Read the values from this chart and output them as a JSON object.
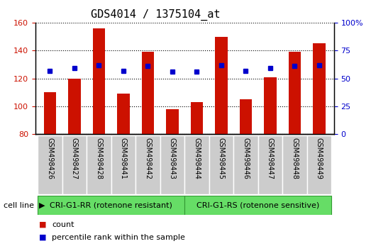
{
  "title": "GDS4014 / 1375104_at",
  "categories": [
    "GSM498426",
    "GSM498427",
    "GSM498428",
    "GSM498441",
    "GSM498442",
    "GSM498443",
    "GSM498444",
    "GSM498445",
    "GSM498446",
    "GSM498447",
    "GSM498448",
    "GSM498449"
  ],
  "bar_values": [
    110,
    120,
    156,
    109,
    139,
    98,
    103,
    150,
    105,
    121,
    139,
    145
  ],
  "percentile_values": [
    57,
    59,
    62,
    57,
    61,
    56,
    56,
    62,
    57,
    59,
    61,
    62
  ],
  "bar_color": "#cc1100",
  "percentile_color": "#0000cc",
  "ylim_left": [
    80,
    160
  ],
  "ylim_right": [
    0,
    100
  ],
  "yticks_left": [
    80,
    100,
    120,
    140,
    160
  ],
  "yticks_right": [
    0,
    25,
    50,
    75,
    100
  ],
  "group1_label": "CRI-G1-RR (rotenone resistant)",
  "group2_label": "CRI-G1-RS (rotenone sensitive)",
  "group1_indices": [
    0,
    1,
    2,
    3,
    4,
    5
  ],
  "group2_indices": [
    6,
    7,
    8,
    9,
    10,
    11
  ],
  "cell_line_label": "cell line",
  "legend_count": "count",
  "legend_percentile": "percentile rank within the sample",
  "group_bg_color": "#66dd66",
  "tick_label_area_color": "#cccccc",
  "bar_width": 0.5,
  "title_fontsize": 11,
  "tick_fontsize": 8,
  "label_fontsize": 7,
  "group_fontsize": 8,
  "legend_fontsize": 8
}
